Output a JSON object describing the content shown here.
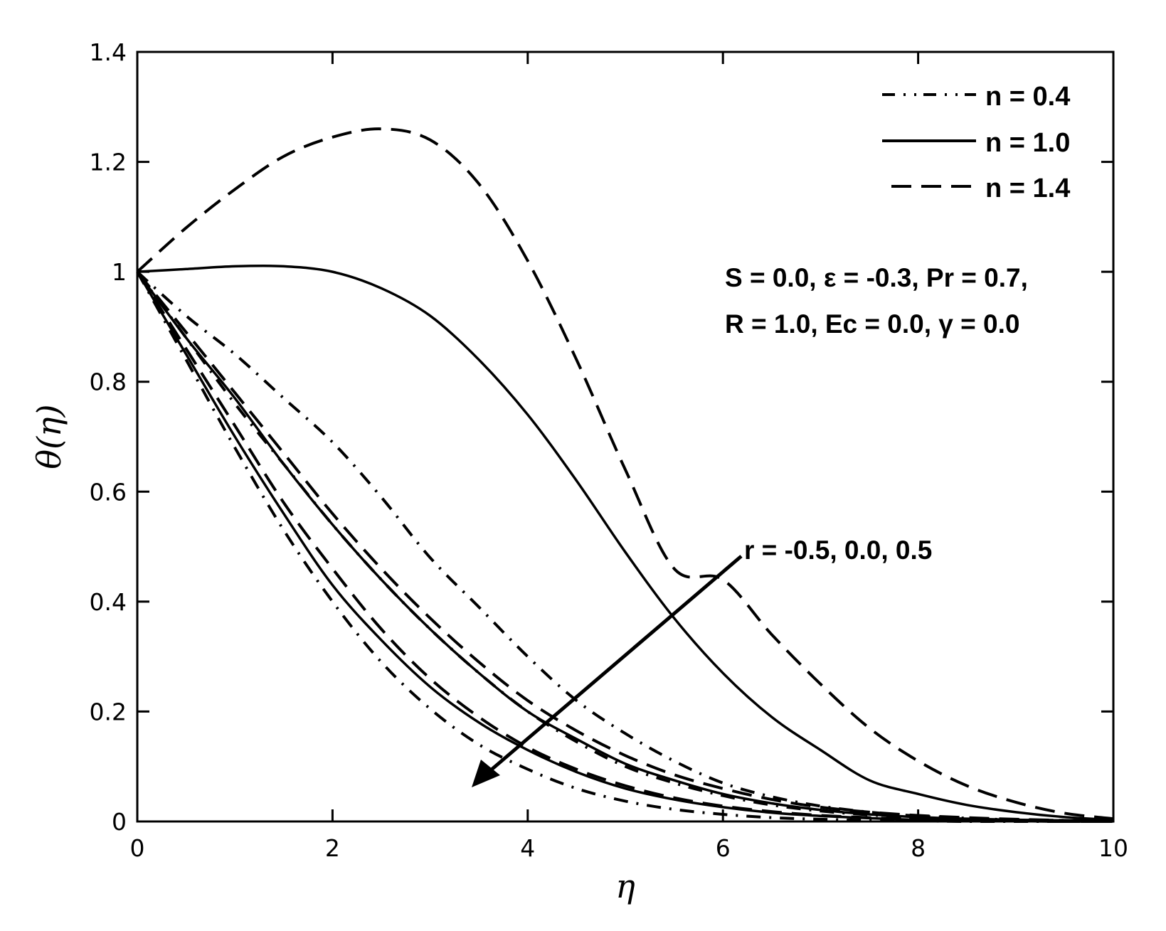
{
  "chart_data": {
    "type": "line",
    "title": "",
    "xlabel": "η",
    "ylabel": "θ(η)",
    "xlim": [
      0,
      10
    ],
    "ylim": [
      0,
      1.4
    ],
    "xticks": [
      "0",
      "2",
      "4",
      "6",
      "8",
      "10"
    ],
    "yticks": [
      "0",
      "0.2",
      "0.4",
      "0.6",
      "0.8",
      "1",
      "1.2",
      "1.4"
    ],
    "grid": false,
    "legend_position": "upper right",
    "legend": [
      {
        "label": "n = 0.4",
        "style": "dashdot"
      },
      {
        "label": "n = 1.0",
        "style": "solid"
      },
      {
        "label": "n = 1.4",
        "style": "dashed"
      }
    ],
    "annotations": {
      "params_line1": "S = 0.0, ε = -0.3, Pr = 0.7,",
      "params_line2": "R = 1.0, Ec = 0.0, γ = 0.0",
      "arrow_label": "r = -0.5, 0.0, 0.5",
      "arrow": {
        "from": [
          6.2,
          0.46
        ],
        "to": [
          3.4,
          0.065
        ]
      }
    },
    "x": [
      0,
      0.5,
      1,
      1.5,
      2,
      2.5,
      3,
      3.5,
      4,
      4.5,
      5,
      5.5,
      6,
      6.5,
      7,
      7.5,
      8,
      8.5,
      9,
      9.5,
      10
    ],
    "series": [
      {
        "name": "n = 1.4, r = -0.5",
        "style": "dashed",
        "values": [
          1.0,
          1.08,
          1.15,
          1.21,
          1.245,
          1.26,
          1.24,
          1.16,
          1.02,
          0.84,
          0.64,
          0.46,
          0.44,
          0.34,
          0.25,
          0.17,
          0.11,
          0.065,
          0.035,
          0.015,
          0.005
        ]
      },
      {
        "name": "n = 1.0, r = -0.5",
        "style": "solid",
        "values": [
          1.0,
          1.005,
          1.01,
          1.01,
          1.0,
          0.97,
          0.92,
          0.84,
          0.74,
          0.62,
          0.49,
          0.37,
          0.27,
          0.19,
          0.13,
          0.075,
          0.05,
          0.03,
          0.017,
          0.008,
          0.003
        ]
      },
      {
        "name": "n = 0.4, r = -0.5",
        "style": "dashdot",
        "values": [
          1.0,
          0.92,
          0.85,
          0.77,
          0.69,
          0.59,
          0.48,
          0.39,
          0.3,
          0.22,
          0.16,
          0.11,
          0.07,
          0.045,
          0.028,
          0.017,
          0.01,
          0.006,
          0.003,
          0.002,
          0.001
        ]
      },
      {
        "name": "n = 1.4, r = 0.0",
        "style": "dashed",
        "values": [
          1.0,
          0.89,
          0.78,
          0.67,
          0.56,
          0.46,
          0.37,
          0.29,
          0.22,
          0.165,
          0.12,
          0.085,
          0.06,
          0.04,
          0.026,
          0.017,
          0.011,
          0.007,
          0.004,
          0.002,
          0.001
        ]
      },
      {
        "name": "n = 1.0, r = 0.0",
        "style": "solid",
        "values": [
          1.0,
          0.88,
          0.77,
          0.65,
          0.54,
          0.44,
          0.35,
          0.27,
          0.2,
          0.15,
          0.105,
          0.075,
          0.05,
          0.033,
          0.021,
          0.013,
          0.008,
          0.005,
          0.003,
          0.002,
          0.001
        ]
      },
      {
        "name": "n = 0.4, r = 0.0",
        "style": "dashdot",
        "values": [
          1.0,
          0.88,
          0.76,
          0.65,
          0.54,
          0.44,
          0.35,
          0.27,
          0.2,
          0.145,
          0.1,
          0.07,
          0.047,
          0.03,
          0.019,
          0.012,
          0.007,
          0.004,
          0.002,
          0.001,
          0.0
        ]
      },
      {
        "name": "n = 1.4, r = 0.5",
        "style": "dashed",
        "values": [
          1.0,
          0.86,
          0.72,
          0.58,
          0.46,
          0.35,
          0.26,
          0.19,
          0.135,
          0.095,
          0.065,
          0.043,
          0.028,
          0.018,
          0.011,
          0.007,
          0.004,
          0.002,
          0.001,
          0.0,
          0.0
        ]
      },
      {
        "name": "n = 1.0, r = 0.5",
        "style": "solid",
        "values": [
          1.0,
          0.85,
          0.7,
          0.56,
          0.43,
          0.33,
          0.245,
          0.18,
          0.13,
          0.09,
          0.06,
          0.04,
          0.026,
          0.016,
          0.01,
          0.006,
          0.003,
          0.002,
          0.001,
          0.0,
          0.0
        ]
      },
      {
        "name": "n = 0.4, r = 0.5",
        "style": "dashdot",
        "values": [
          1.0,
          0.84,
          0.68,
          0.53,
          0.4,
          0.29,
          0.205,
          0.14,
          0.095,
          0.06,
          0.037,
          0.022,
          0.013,
          0.007,
          0.004,
          0.002,
          0.001,
          0.0,
          0.0,
          0.0,
          0.0
        ]
      }
    ]
  }
}
